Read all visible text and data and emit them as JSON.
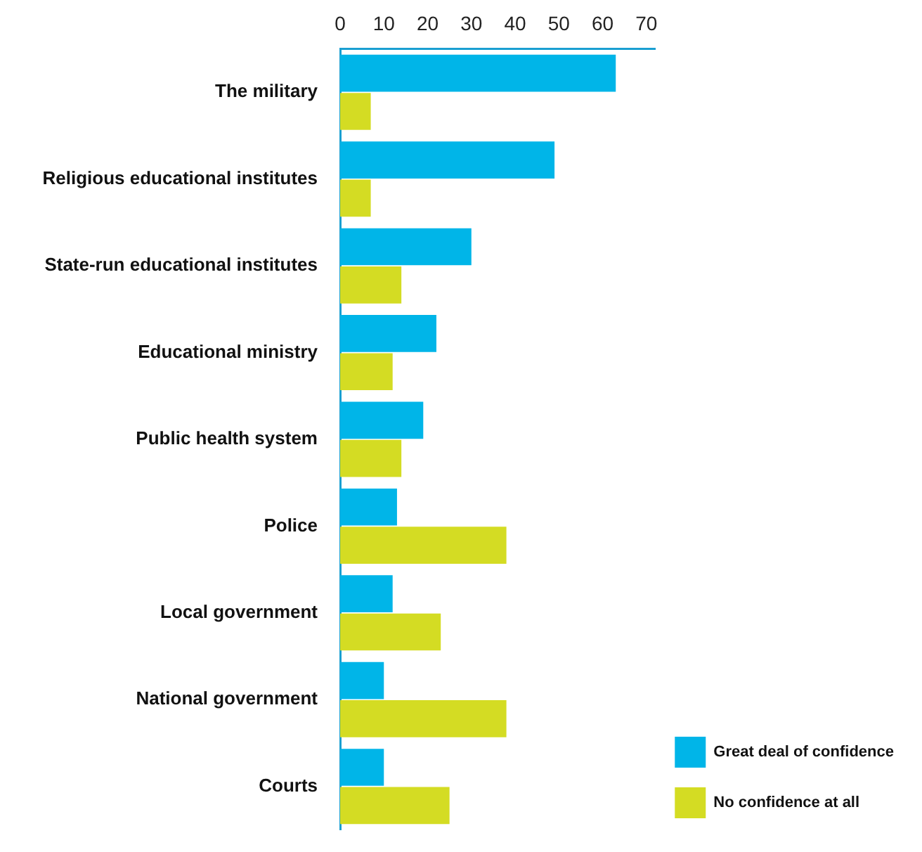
{
  "chart_data": {
    "type": "bar",
    "orientation": "horizontal",
    "categories": [
      "The military",
      "Religious educational institutes",
      "State-run educational institutes",
      "Educational ministry",
      "Public health system",
      "Police",
      "Local government",
      "National government",
      "Courts"
    ],
    "series": [
      {
        "name": "Great deal of confidence",
        "color": "#00b5e8",
        "values": [
          63,
          49,
          30,
          22,
          19,
          13,
          12,
          10,
          10
        ]
      },
      {
        "name": "No confidence at all",
        "color": "#d4dc23",
        "values": [
          7,
          7,
          14,
          12,
          14,
          38,
          23,
          38,
          25
        ]
      }
    ],
    "xlim": [
      0,
      72
    ],
    "xticks": [
      0,
      10,
      20,
      30,
      40,
      50,
      60,
      70
    ],
    "grid": false,
    "legend": "bottom right"
  }
}
